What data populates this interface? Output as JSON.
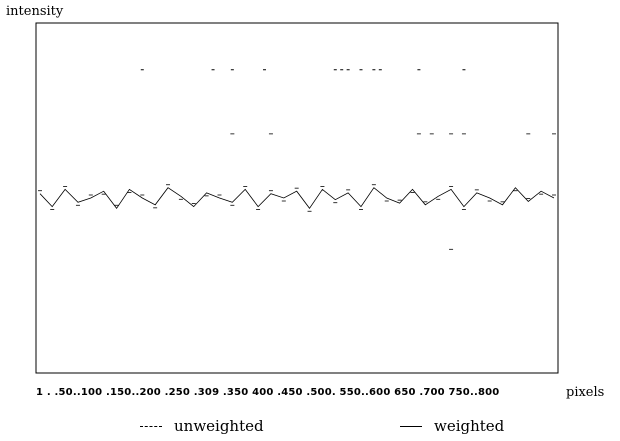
{
  "chart_data": {
    "type": "line",
    "ylabel": "intensity",
    "xlabel": "pixels",
    "x_tick_text": "1 . .50..100 .150..200 .250 .309 .350  400 .450 .500. 550..600  650 .700  750..800",
    "xlim": [
      1,
      800
    ],
    "legend": {
      "position": "bottom",
      "entries": [
        {
          "label": "unweighted",
          "style": "dashed"
        },
        {
          "label": "weighted",
          "style": "solid"
        }
      ]
    },
    "series": [
      {
        "name": "unweighted",
        "style": "dashed",
        "x": [
          160,
          270,
          300,
          350,
          460,
          470,
          480,
          500,
          520,
          530,
          590,
          660
        ],
        "y": [
          1.5,
          1.5,
          1.5,
          1.5,
          1.5,
          1.5,
          1.5,
          1.5,
          1.5,
          1.5,
          1.5,
          1.5
        ]
      },
      {
        "name": "weighted",
        "style": "solid",
        "x": [
          1,
          20,
          40,
          60,
          80,
          100,
          120,
          140,
          160,
          180,
          200,
          220,
          240,
          260,
          280,
          300,
          320,
          340,
          360,
          380,
          400,
          420,
          440,
          460,
          480,
          500,
          520,
          540,
          560,
          580,
          600,
          620,
          640,
          660,
          680,
          700,
          720,
          740,
          760,
          780,
          800
        ],
        "y": [
          0.05,
          -0.1,
          0.1,
          -0.05,
          0.0,
          0.08,
          -0.12,
          0.1,
          0.0,
          -0.08,
          0.12,
          0.02,
          -0.1,
          0.06,
          0.0,
          -0.05,
          0.1,
          -0.1,
          0.05,
          0.0,
          0.08,
          -0.12,
          0.1,
          -0.02,
          0.06,
          -0.1,
          0.12,
          0.0,
          -0.06,
          0.1,
          -0.08,
          0.02,
          0.1,
          -0.1,
          0.06,
          0.0,
          -0.08,
          0.12,
          -0.04,
          0.08,
          0.0
        ]
      }
    ],
    "extra_marks": [
      {
        "x": 300,
        "y": 0.75
      },
      {
        "x": 360,
        "y": 0.75
      },
      {
        "x": 590,
        "y": 0.75
      },
      {
        "x": 610,
        "y": 0.75
      },
      {
        "x": 640,
        "y": 0.75
      },
      {
        "x": 660,
        "y": 0.75
      },
      {
        "x": 760,
        "y": 0.75
      },
      {
        "x": 800,
        "y": 0.75
      },
      {
        "x": 640,
        "y": -0.6
      }
    ],
    "ylim": [
      -2,
      2
    ],
    "grid": false
  }
}
